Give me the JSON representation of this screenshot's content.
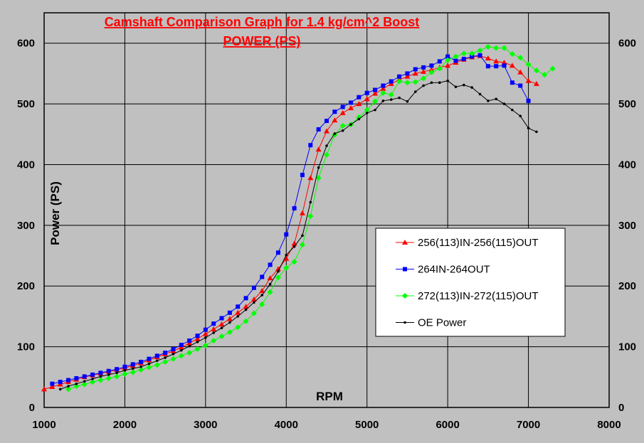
{
  "chart_data": {
    "type": "line",
    "title": "Camshaft Comparison Graph for 1.4 kg/cm^2 Boost",
    "subtitle": "POWER (PS)",
    "xlabel": "RPM",
    "ylabel": "Power (PS)",
    "xlim": [
      1000,
      8000
    ],
    "ylim": [
      0,
      650
    ],
    "xticks": [
      "1000",
      "2000",
      "3000",
      "4000",
      "5000",
      "6000",
      "7000",
      "8000"
    ],
    "yticks": [
      "0",
      "100",
      "200",
      "300",
      "400",
      "500",
      "600"
    ],
    "grid": true,
    "legend_position": "center-right",
    "plot_background": "#c0c0c0",
    "series": [
      {
        "name": "256(113)IN-256(115)OUT",
        "color": "#ff0000",
        "marker": "triangle",
        "x": [
          1000,
          1100,
          1200,
          1300,
          1400,
          1500,
          1600,
          1700,
          1800,
          1900,
          2000,
          2100,
          2200,
          2300,
          2400,
          2500,
          2600,
          2700,
          2800,
          2900,
          3000,
          3100,
          3200,
          3300,
          3400,
          3500,
          3600,
          3700,
          3800,
          3900,
          4000,
          4100,
          4200,
          4300,
          4400,
          4500,
          4600,
          4700,
          4800,
          4900,
          5000,
          5100,
          5200,
          5300,
          5400,
          5500,
          5600,
          5700,
          5800,
          5900,
          6000,
          6100,
          6200,
          6300,
          6400,
          6500,
          6600,
          6700,
          6800,
          6900,
          7000,
          7100
        ],
        "y": [
          30,
          34,
          38,
          42,
          46,
          50,
          53,
          56,
          59,
          62,
          65,
          69,
          73,
          78,
          83,
          88,
          93,
          99,
          106,
          113,
          121,
          129,
          137,
          146,
          156,
          166,
          178,
          192,
          213,
          228,
          245,
          270,
          320,
          378,
          425,
          455,
          473,
          485,
          493,
          500,
          508,
          517,
          525,
          533,
          540,
          545,
          550,
          553,
          556,
          560,
          563,
          568,
          573,
          577,
          579,
          575,
          570,
          568,
          563,
          552,
          538,
          533
        ]
      },
      {
        "name": "264IN-264OUT",
        "color": "#0000ff",
        "marker": "square",
        "x": [
          1100,
          1200,
          1300,
          1400,
          1500,
          1600,
          1700,
          1800,
          1900,
          2000,
          2100,
          2200,
          2300,
          2400,
          2500,
          2600,
          2700,
          2800,
          2900,
          3000,
          3100,
          3200,
          3300,
          3400,
          3500,
          3600,
          3700,
          3800,
          3900,
          4000,
          4100,
          4200,
          4300,
          4400,
          4500,
          4600,
          4700,
          4800,
          4900,
          5000,
          5100,
          5200,
          5300,
          5400,
          5500,
          5600,
          5700,
          5800,
          5900,
          6000,
          6100,
          6200,
          6300,
          6400,
          6500,
          6600,
          6700,
          6800,
          6900,
          7000
        ],
        "y": [
          39,
          42,
          45,
          48,
          51,
          54,
          57,
          60,
          63,
          67,
          71,
          75,
          80,
          85,
          90,
          96,
          103,
          110,
          118,
          128,
          138,
          147,
          156,
          166,
          180,
          197,
          215,
          235,
          255,
          285,
          328,
          383,
          432,
          458,
          472,
          487,
          495,
          502,
          511,
          518,
          523,
          530,
          537,
          545,
          550,
          557,
          560,
          563,
          570,
          578,
          571,
          574,
          578,
          580,
          562,
          562,
          563,
          535,
          530,
          505
        ]
      },
      {
        "name": "272(113)IN-272(115)OUT",
        "color": "#00ff00",
        "marker": "diamond",
        "x": [
          1300,
          1400,
          1500,
          1600,
          1700,
          1800,
          1900,
          2000,
          2100,
          2200,
          2300,
          2400,
          2500,
          2600,
          2700,
          2800,
          2900,
          3000,
          3100,
          3200,
          3300,
          3400,
          3500,
          3600,
          3700,
          3800,
          3900,
          4000,
          4100,
          4200,
          4300,
          4400,
          4500,
          4600,
          4700,
          4800,
          4900,
          5000,
          5100,
          5200,
          5300,
          5400,
          5500,
          5600,
          5700,
          5800,
          5900,
          6000,
          6100,
          6200,
          6300,
          6400,
          6500,
          6600,
          6700,
          6800,
          6900,
          7000,
          7100,
          7200,
          7300
        ],
        "y": [
          30,
          35,
          38,
          42,
          45,
          48,
          51,
          55,
          58,
          62,
          66,
          70,
          75,
          80,
          85,
          90,
          96,
          102,
          110,
          117,
          124,
          132,
          142,
          155,
          170,
          190,
          214,
          230,
          240,
          268,
          315,
          378,
          416,
          449,
          464,
          466,
          478,
          490,
          504,
          518,
          515,
          537,
          535,
          536,
          542,
          552,
          558,
          572,
          578,
          583,
          583,
          588,
          594,
          592,
          592,
          582,
          576,
          565,
          555,
          548,
          558
        ]
      },
      {
        "name": "OE Power",
        "color": "#000000",
        "marker": "dot",
        "x": [
          1200,
          1300,
          1400,
          1500,
          1600,
          1700,
          1800,
          1900,
          2000,
          2100,
          2200,
          2300,
          2400,
          2500,
          2600,
          2700,
          2800,
          2900,
          3000,
          3100,
          3200,
          3300,
          3400,
          3500,
          3600,
          3700,
          3800,
          3900,
          4000,
          4100,
          4200,
          4300,
          4400,
          4500,
          4600,
          4700,
          4800,
          4900,
          5000,
          5100,
          5200,
          5300,
          5400,
          5500,
          5600,
          5700,
          5800,
          5900,
          6000,
          6100,
          6200,
          6300,
          6400,
          6500,
          6600,
          6700,
          6800,
          6900,
          7000,
          7100
        ],
        "y": [
          30,
          35,
          39,
          43,
          47,
          51,
          54,
          57,
          61,
          64,
          67,
          72,
          77,
          82,
          88,
          94,
          101,
          108,
          115,
          123,
          131,
          140,
          150,
          161,
          173,
          185,
          203,
          224,
          251,
          265,
          283,
          338,
          395,
          431,
          451,
          456,
          466,
          475,
          485,
          490,
          505,
          507,
          510,
          504,
          520,
          530,
          535,
          535,
          538,
          528,
          531,
          527,
          516,
          505,
          508,
          500,
          490,
          480,
          460,
          454
        ]
      }
    ]
  }
}
